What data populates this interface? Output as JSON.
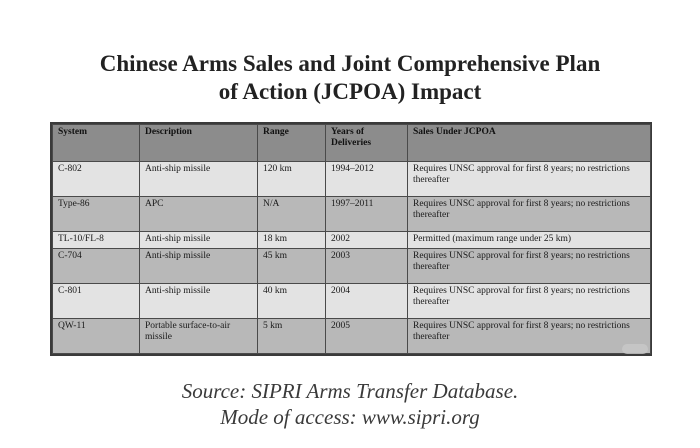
{
  "title": {
    "line1": "Chinese Arms Sales and Joint Comprehensive Plan",
    "line2": "of Action (JCPOA) Impact"
  },
  "table": {
    "headers": [
      "System",
      "Description",
      "Range",
      "Years of Deliveries",
      "Sales Under JCPOA"
    ],
    "rows": [
      [
        "C-802",
        "Anti-ship missile",
        "120 km",
        "1994–2012",
        "Requires UNSC approval for first 8 years; no restrictions thereafter"
      ],
      [
        "Type-86",
        "APC",
        "N/A",
        "1997–2011",
        "Requires UNSC approval for first 8 years; no restrictions thereafter"
      ],
      [
        "TL-10/FL-8",
        "Anti-ship missile",
        "18 km",
        "2002",
        "Permitted (maximum range under 25 km)"
      ],
      [
        "C-704",
        "Anti-ship missile",
        "45 km",
        "2003",
        "Requires UNSC approval for first 8 years; no restrictions thereafter"
      ],
      [
        "C-801",
        "Anti-ship missile",
        "40 km",
        "2004",
        "Requires UNSC approval for first 8 years; no restrictions thereafter"
      ],
      [
        "QW-11",
        "Portable surface-to-air missile",
        "5 km",
        "2005",
        "Requires UNSC approval for first 8 years; no restrictions thereafter"
      ]
    ]
  },
  "source": {
    "line1": "Source: SIPRI Arms Transfer Database.",
    "line2": "Mode of access: www.sipri.org"
  }
}
